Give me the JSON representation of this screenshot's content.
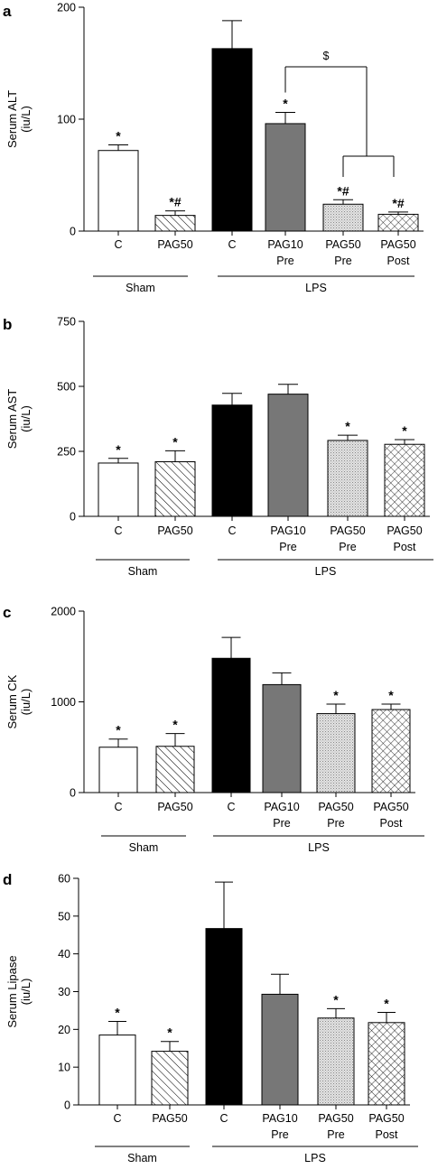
{
  "chart_data": [
    {
      "type": "bar",
      "panel_label": "a",
      "ylabel_lines": [
        "Serum ALT",
        "(iu/L)"
      ],
      "ylim": [
        0,
        200
      ],
      "yticks": [
        "0",
        "100",
        "200"
      ],
      "categories": [
        {
          "lines": [
            "C"
          ]
        },
        {
          "lines": [
            "PAG50"
          ]
        },
        {
          "lines": [
            "C"
          ]
        },
        {
          "lines": [
            "PAG10",
            "Pre"
          ]
        },
        {
          "lines": [
            "PAG50",
            "Pre"
          ]
        },
        {
          "lines": [
            "PAG50",
            "Post"
          ]
        }
      ],
      "values": [
        72,
        14,
        163,
        96,
        24,
        15
      ],
      "errors": [
        5,
        4,
        25,
        10,
        4,
        2
      ],
      "significance": [
        "*",
        "*#",
        "",
        "*",
        "*#",
        "*#"
      ],
      "groups": [
        {
          "label": "Sham",
          "from": 0,
          "to": 1
        },
        {
          "label": "LPS",
          "from": 2,
          "to": 5
        }
      ],
      "bracket_label": "$"
    },
    {
      "type": "bar",
      "panel_label": "b",
      "ylabel_lines": [
        "Serum AST",
        "(iu/L)"
      ],
      "ylim": [
        0,
        750
      ],
      "yticks": [
        "0",
        "250",
        "500",
        "750"
      ],
      "categories": [
        {
          "lines": [
            "C"
          ]
        },
        {
          "lines": [
            "PAG50"
          ]
        },
        {
          "lines": [
            "C"
          ]
        },
        {
          "lines": [
            "PAG10",
            "Pre"
          ]
        },
        {
          "lines": [
            "PAG50",
            "Pre"
          ]
        },
        {
          "lines": [
            "PAG50",
            "Post"
          ]
        }
      ],
      "values": [
        205,
        210,
        428,
        470,
        292,
        277
      ],
      "errors": [
        18,
        42,
        45,
        38,
        20,
        18
      ],
      "significance": [
        "*",
        "*",
        "",
        "",
        "*",
        "*"
      ],
      "groups": [
        {
          "label": "Sham",
          "from": 0,
          "to": 1
        },
        {
          "label": "LPS",
          "from": 2,
          "to": 5
        }
      ]
    },
    {
      "type": "bar",
      "panel_label": "c",
      "ylabel_lines": [
        "Serum CK",
        "(iu/L)"
      ],
      "ylim": [
        0,
        2000
      ],
      "yticks": [
        "0",
        "1000",
        "2000"
      ],
      "categories": [
        {
          "lines": [
            "C"
          ]
        },
        {
          "lines": [
            "PAG50"
          ]
        },
        {
          "lines": [
            "C"
          ]
        },
        {
          "lines": [
            "PAG10",
            "Pre"
          ]
        },
        {
          "lines": [
            "PAG50",
            "Pre"
          ]
        },
        {
          "lines": [
            "PAG50",
            "Post"
          ]
        }
      ],
      "values": [
        500,
        510,
        1480,
        1190,
        870,
        915
      ],
      "errors": [
        90,
        140,
        230,
        130,
        105,
        60
      ],
      "significance": [
        "*",
        "*",
        "",
        "",
        "*",
        "*"
      ],
      "groups": [
        {
          "label": "Sham",
          "from": 0,
          "to": 1
        },
        {
          "label": "LPS",
          "from": 2,
          "to": 5
        }
      ]
    },
    {
      "type": "bar",
      "panel_label": "d",
      "ylabel_lines": [
        "Serum Lipase",
        "(iu/L)"
      ],
      "ylim": [
        0,
        60
      ],
      "yticks": [
        "0",
        "10",
        "20",
        "30",
        "40",
        "50",
        "60"
      ],
      "categories": [
        {
          "lines": [
            "C"
          ]
        },
        {
          "lines": [
            "PAG50"
          ]
        },
        {
          "lines": [
            "C"
          ]
        },
        {
          "lines": [
            "PAG10",
            "Pre"
          ]
        },
        {
          "lines": [
            "PAG50",
            "Pre"
          ]
        },
        {
          "lines": [
            "PAG50",
            "Post"
          ]
        }
      ],
      "values": [
        18.5,
        14.2,
        46.7,
        29.3,
        23.0,
        21.8
      ],
      "errors": [
        3.6,
        2.6,
        12.3,
        5.3,
        2.5,
        2.7
      ],
      "significance": [
        "*",
        "*",
        "",
        "",
        "*",
        "*"
      ],
      "groups": [
        {
          "label": "Sham",
          "from": 0,
          "to": 1
        },
        {
          "label": "LPS",
          "from": 2,
          "to": 5
        }
      ]
    }
  ],
  "colors": {
    "ink": "#000000",
    "c_sham": "#ffffff",
    "c_lps": "#000000",
    "pag10": "#777777",
    "pag50_pre": "#d4d4d4",
    "pag50_post": "#ffffff"
  },
  "bar_fills": [
    "c-sham",
    "diagonal-hatch",
    "c-lps",
    "pag10-grey",
    "pag50-pre-stipple",
    "pag50-post-crosshatch"
  ]
}
